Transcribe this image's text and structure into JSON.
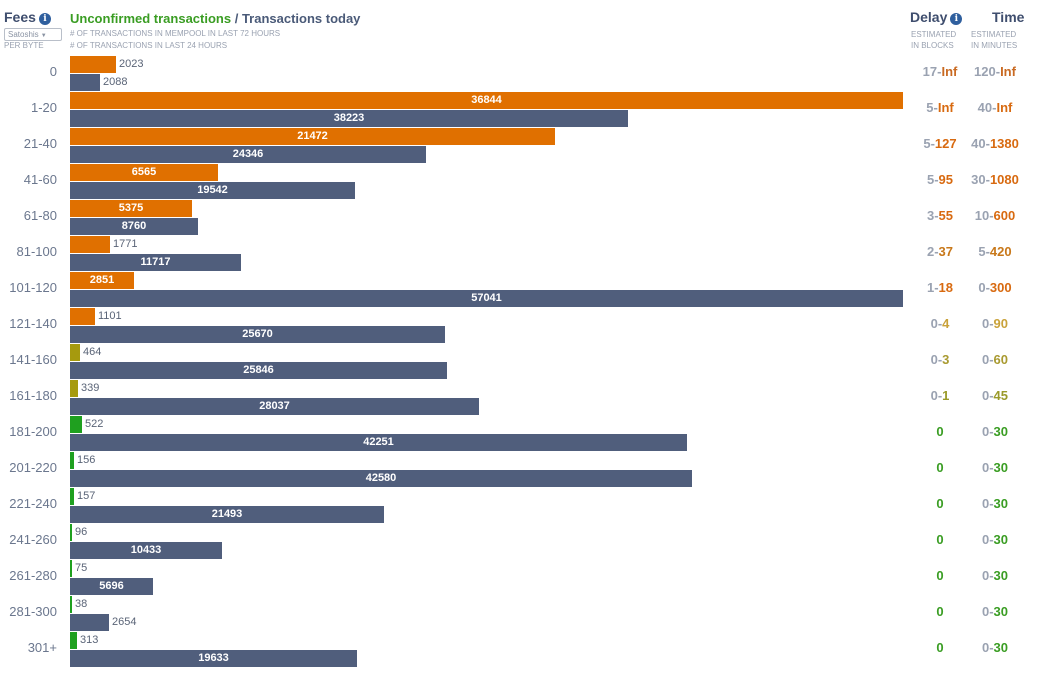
{
  "header": {
    "fees_title": "Fees",
    "unit_select": "Satoshis",
    "per_byte": "PER BYTE",
    "chart_title_green": "Unconfirmed transactions",
    "chart_title_sep": " / ",
    "chart_title_rest": "Transactions today",
    "sub1": "# OF TRANSACTIONS IN MEMPOOL IN LAST 72 HOURS",
    "sub2": "# OF TRANSACTIONS IN LAST 24 HOURS",
    "delay_title": "Delay",
    "delay_sub1": "ESTIMATED",
    "delay_sub2": "IN BLOCKS",
    "time_title": "Time",
    "time_sub1": "ESTIMATED",
    "time_sub2": "IN MINUTES"
  },
  "colors": {
    "today_bar": "#505e7c",
    "orange": "#e07000",
    "olive": "#a69a0e",
    "green": "#1fa01f",
    "lightgreen": "#2cb52c"
  },
  "chart_data": {
    "type": "bar",
    "orientation": "horizontal",
    "categories": [
      "0",
      "1-20",
      "21-40",
      "41-60",
      "61-80",
      "81-100",
      "101-120",
      "121-140",
      "141-160",
      "161-180",
      "181-200",
      "201-220",
      "221-240",
      "241-260",
      "261-280",
      "281-300",
      "301+"
    ],
    "series": [
      {
        "name": "Unconfirmed transactions",
        "values": [
          2023,
          36844,
          21472,
          6565,
          5375,
          1771,
          2851,
          1101,
          464,
          339,
          522,
          156,
          157,
          96,
          75,
          38,
          313
        ],
        "bar_colors": [
          "#e07000",
          "#e07000",
          "#e07000",
          "#e07000",
          "#e07000",
          "#e07000",
          "#e07000",
          "#e07000",
          "#a69a0e",
          "#a69a0e",
          "#1fa01f",
          "#1fa01f",
          "#1fa01f",
          "#1fa01f",
          "#1fa01f",
          "#1fa01f",
          "#1fa01f"
        ]
      },
      {
        "name": "Transactions today",
        "values": [
          2088,
          38223,
          24346,
          19542,
          8760,
          11717,
          57041,
          25670,
          25846,
          28037,
          42251,
          42580,
          21493,
          10433,
          5696,
          2654,
          19633
        ]
      }
    ],
    "delay": [
      {
        "lo": "17",
        "sep": "-",
        "hi": "Inf",
        "color": "#c96a22"
      },
      {
        "lo": "5",
        "sep": "-",
        "hi": "Inf",
        "color": "#d86a10"
      },
      {
        "lo": "5",
        "sep": "-",
        "hi": "127",
        "color": "#d86a10"
      },
      {
        "lo": "5",
        "sep": "-",
        "hi": "95",
        "color": "#d86a10"
      },
      {
        "lo": "3",
        "sep": "-",
        "hi": "55",
        "color": "#d86a10"
      },
      {
        "lo": "2",
        "sep": "-",
        "hi": "37",
        "color": "#c8781a"
      },
      {
        "lo": "1",
        "sep": "-",
        "hi": "18",
        "color": "#d86a10"
      },
      {
        "lo": "0",
        "sep": "-",
        "hi": "4",
        "color": "#c9a23a"
      },
      {
        "lo": "0",
        "sep": "-",
        "hi": "3",
        "color": "#a99a30"
      },
      {
        "lo": "0",
        "sep": "-",
        "hi": "1",
        "color": "#9a9a2a"
      },
      {
        "lo": "",
        "sep": "",
        "hi": "0",
        "color": "#3a9d23"
      },
      {
        "lo": "",
        "sep": "",
        "hi": "0",
        "color": "#3a9d23"
      },
      {
        "lo": "",
        "sep": "",
        "hi": "0",
        "color": "#3a9d23"
      },
      {
        "lo": "",
        "sep": "",
        "hi": "0",
        "color": "#3a9d23"
      },
      {
        "lo": "",
        "sep": "",
        "hi": "0",
        "color": "#3a9d23"
      },
      {
        "lo": "",
        "sep": "",
        "hi": "0",
        "color": "#3a9d23"
      },
      {
        "lo": "",
        "sep": "",
        "hi": "0",
        "color": "#3a9d23"
      }
    ],
    "time": [
      {
        "lo": "120",
        "sep": "-",
        "hi": "Inf",
        "color": "#c96a22"
      },
      {
        "lo": "40",
        "sep": "-",
        "hi": "Inf",
        "color": "#d86a10"
      },
      {
        "lo": "40",
        "sep": "-",
        "hi": "1380",
        "color": "#d86a10"
      },
      {
        "lo": "30",
        "sep": "-",
        "hi": "1080",
        "color": "#d86a10"
      },
      {
        "lo": "10",
        "sep": "-",
        "hi": "600",
        "color": "#d86a10"
      },
      {
        "lo": "5",
        "sep": "-",
        "hi": "420",
        "color": "#c8781a"
      },
      {
        "lo": "0",
        "sep": "-",
        "hi": "300",
        "color": "#d86a10"
      },
      {
        "lo": "0",
        "sep": "-",
        "hi": "90",
        "color": "#c9a23a"
      },
      {
        "lo": "0",
        "sep": "-",
        "hi": "60",
        "color": "#a99a30"
      },
      {
        "lo": "0",
        "sep": "-",
        "hi": "45",
        "color": "#9a9a2a"
      },
      {
        "lo": "0",
        "sep": "-",
        "hi": "30",
        "color": "#3a9d23"
      },
      {
        "lo": "0",
        "sep": "-",
        "hi": "30",
        "color": "#3a9d23"
      },
      {
        "lo": "0",
        "sep": "-",
        "hi": "30",
        "color": "#3a9d23"
      },
      {
        "lo": "0",
        "sep": "-",
        "hi": "30",
        "color": "#3a9d23"
      },
      {
        "lo": "0",
        "sep": "-",
        "hi": "30",
        "color": "#3a9d23"
      },
      {
        "lo": "0",
        "sep": "-",
        "hi": "30",
        "color": "#3a9d23"
      },
      {
        "lo": "0",
        "sep": "-",
        "hi": "30",
        "color": "#3a9d23"
      }
    ]
  }
}
